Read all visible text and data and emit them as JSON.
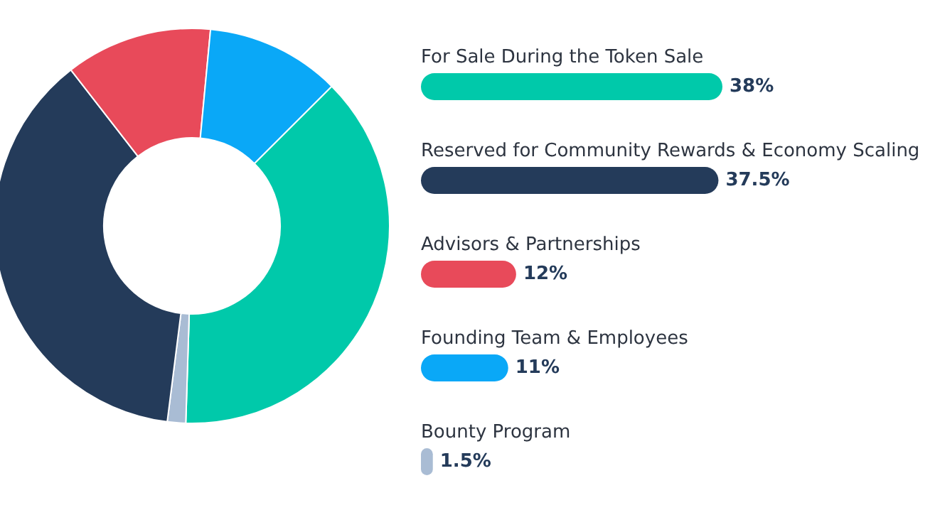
{
  "chart_data": [
    {
      "type": "donut",
      "categories": [
        null,
        null,
        null,
        null,
        null
      ],
      "values": [
        38,
        1.5,
        37.5,
        12,
        11
      ],
      "colors": [
        "#00c9aa",
        "#a9bcd4",
        "#243b5a",
        "#e84a5a",
        "#0aa8f7"
      ]
    },
    {
      "type": "bar",
      "orientation": "horizontal",
      "categories": [
        "For Sale During the Token Sale",
        "Reserved for Community Rewards & Economy Scaling",
        "Advisors & Partnerships",
        "Founding Team & Employees",
        "Bounty Program"
      ],
      "values": [
        38,
        37.5,
        12,
        11,
        1.5
      ],
      "colors": [
        "#00c9aa",
        "#243b5a",
        "#e84a5a",
        "#0aa8f7",
        "#a9bcd4"
      ],
      "value_labels": [
        "38%",
        "37.5%",
        "12%",
        "11%",
        "1.5%"
      ]
    }
  ]
}
